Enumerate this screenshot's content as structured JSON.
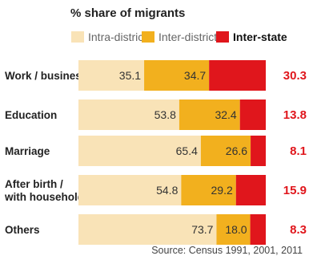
{
  "colors": {
    "intra_district": "#f9e3b7",
    "inter_district": "#f2b01e",
    "inter_state": "#e0161c"
  },
  "chart_data": {
    "type": "bar",
    "orientation": "horizontal",
    "stacked": true,
    "title": "% share of migrants",
    "categories": [
      "Work / business",
      "Education",
      "Marriage",
      "After birth / with household",
      "Others"
    ],
    "series": [
      {
        "name": "Intra-district",
        "values": [
          35.1,
          53.8,
          65.4,
          54.8,
          73.7
        ]
      },
      {
        "name": "Inter-district",
        "values": [
          34.7,
          32.4,
          26.6,
          29.2,
          18.0
        ]
      },
      {
        "name": "Inter-state",
        "values": [
          30.3,
          13.8,
          8.1,
          15.9,
          8.3
        ]
      }
    ],
    "value_labels": {
      "intra_district": [
        "35.1",
        "53.8",
        "65.4",
        "54.8",
        "73.7"
      ],
      "inter_district": [
        "34.7",
        "32.4",
        "26.6",
        "29.2",
        "18.0"
      ],
      "inter_state": [
        "30.3",
        "13.8",
        "8.1",
        "15.9",
        "8.3"
      ]
    },
    "legend": "top",
    "grid": false,
    "source": "Source: Census 1991, 2001, 2011"
  }
}
